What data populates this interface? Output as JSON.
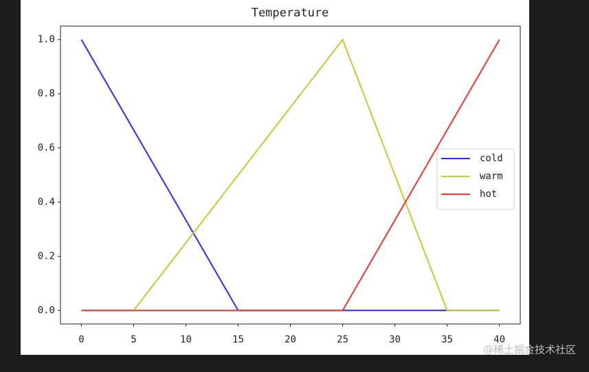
{
  "chart_data": {
    "type": "line",
    "title": "Temperature",
    "x": [
      0,
      5,
      15,
      25,
      35,
      40
    ],
    "series": [
      {
        "name": "cold",
        "color": "#2a2aff",
        "values": [
          1,
          0.6667,
          0,
          0,
          0,
          0
        ]
      },
      {
        "name": "warm",
        "color": "#c8c832",
        "values": [
          0,
          0,
          0.5,
          1,
          0,
          0
        ]
      },
      {
        "name": "hot",
        "color": "#ff3030",
        "values": [
          0,
          0,
          0,
          0,
          0.6667,
          1
        ]
      }
    ],
    "xlim": [
      -2,
      42
    ],
    "xticks": [
      0,
      5,
      10,
      15,
      20,
      25,
      30,
      35,
      40
    ],
    "ylim": [
      -0.05,
      1.05
    ],
    "yticks": [
      {
        "value": 0,
        "label": "0.0"
      },
      {
        "value": 0.2,
        "label": "0.2"
      },
      {
        "value": 0.4,
        "label": "0.4"
      },
      {
        "value": 0.6,
        "label": "0.6"
      },
      {
        "value": 0.8,
        "label": "0.8"
      },
      {
        "value": 1,
        "label": "1.0"
      }
    ],
    "grid": false,
    "legend": "center right"
  },
  "watermark": "@稀土掘金技术社区"
}
